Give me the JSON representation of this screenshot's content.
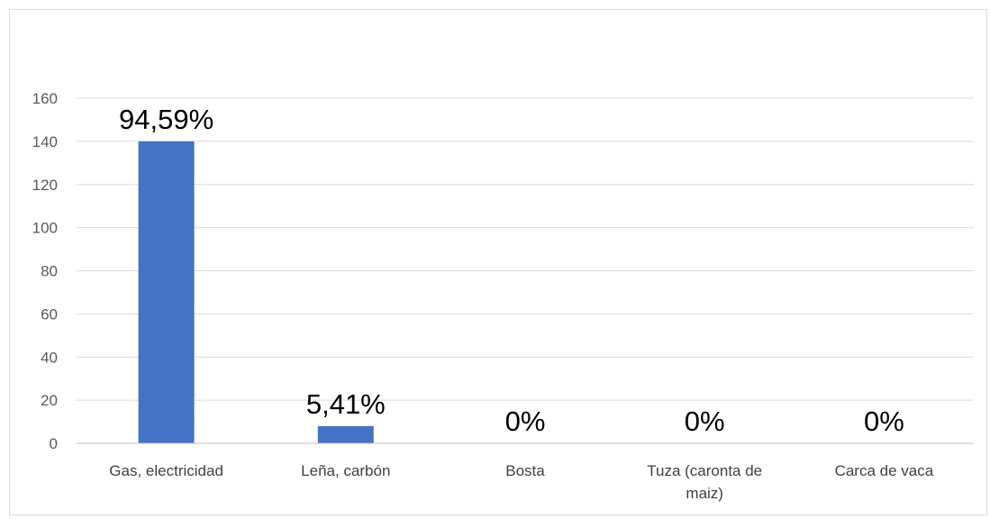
{
  "chart_data": {
    "type": "bar",
    "title": "",
    "xlabel": "",
    "ylabel": "",
    "ylim": [
      0,
      160
    ],
    "yticks": [
      "0",
      "20",
      "40",
      "60",
      "80",
      "100",
      "120",
      "140",
      "160"
    ],
    "grid": true,
    "categories": [
      [
        "Gas, electricidad"
      ],
      [
        "Leña, carbón"
      ],
      [
        "Bosta"
      ],
      [
        "Tuza (caronta de",
        "maiz)"
      ],
      [
        "Carca de vaca"
      ]
    ],
    "values": [
      140,
      8,
      0,
      0,
      0
    ],
    "data_labels": [
      "94,59%",
      "5,41%",
      "0%",
      "0%",
      "0%"
    ],
    "colors": {
      "bar": "#4472c4",
      "grid": "#d9d9d9",
      "axis": "#bfbfbf"
    }
  }
}
